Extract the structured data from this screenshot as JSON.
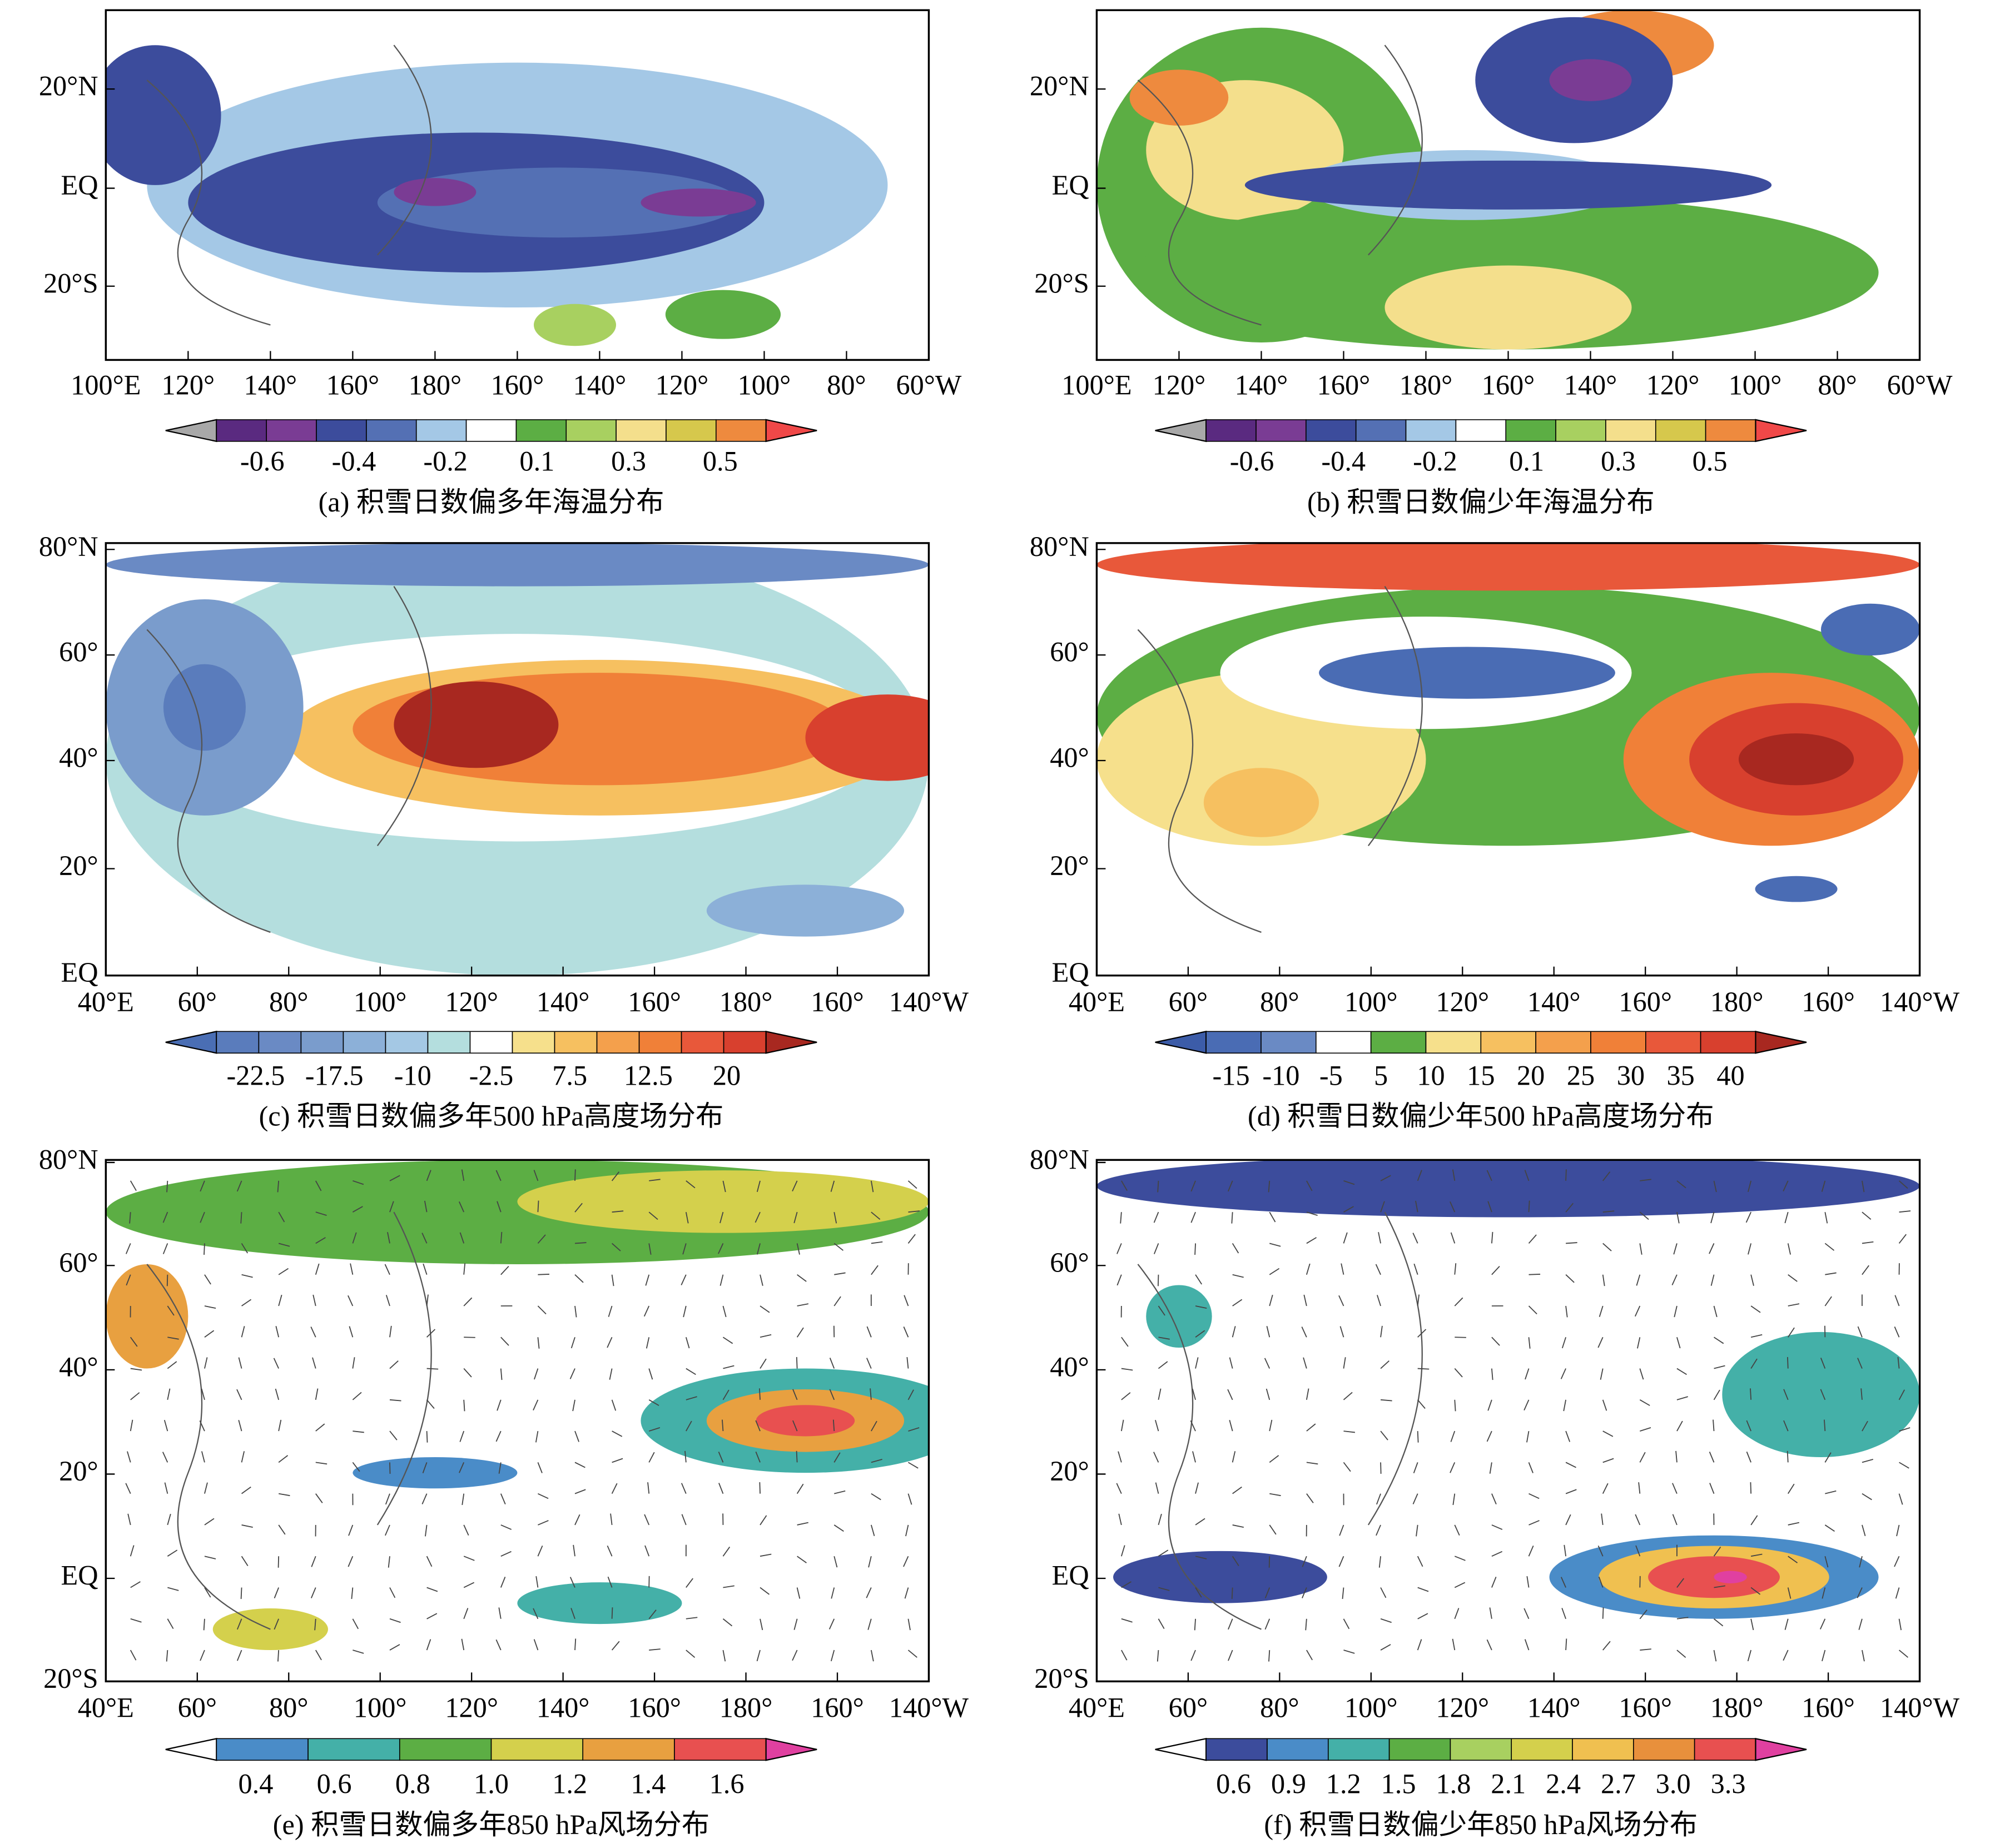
{
  "panels": [
    {
      "caption": "(a) 积雪日数偏多年海温分布",
      "x_ticks": [
        "100°E",
        "120°",
        "140°",
        "160°",
        "180°",
        "160°",
        "140°",
        "120°",
        "100°",
        "80°",
        "60°W"
      ],
      "y_ticks": [
        "20°N",
        "EQ",
        "20°S"
      ],
      "colorbar": {
        "labels": [
          "-0.6",
          "-0.4",
          "-0.2",
          "0.1",
          "0.3",
          "0.5"
        ],
        "colors": [
          "#a8a8a8",
          "#5a2a80",
          "#7a3c94",
          "#3c4c9c",
          "#5470b4",
          "#a4c8e6",
          "#ffffff",
          "#5cae44",
          "#a8d060",
          "#f4df8c",
          "#d6c84c",
          "#ee8a3e",
          "#f04848"
        ]
      }
    },
    {
      "caption": "(b) 积雪日数偏少年海温分布",
      "x_ticks": [
        "100°E",
        "120°",
        "140°",
        "160°",
        "180°",
        "160°",
        "140°",
        "120°",
        "100°",
        "80°",
        "60°W"
      ],
      "y_ticks": [
        "20°N",
        "EQ",
        "20°S"
      ],
      "colorbar": {
        "labels": [
          "-0.6",
          "-0.4",
          "-0.2",
          "0.1",
          "0.3",
          "0.5"
        ],
        "colors": [
          "#a8a8a8",
          "#5a2a80",
          "#7a3c94",
          "#3c4c9c",
          "#5470b4",
          "#a4c8e6",
          "#ffffff",
          "#5cae44",
          "#a8d060",
          "#f4df8c",
          "#d6c84c",
          "#ee8a3e",
          "#f04848"
        ]
      }
    },
    {
      "caption": "(c) 积雪日数偏多年500 hPa高度场分布",
      "x_ticks": [
        "40°E",
        "60°",
        "80°",
        "100°",
        "120°",
        "140°",
        "160°",
        "180°",
        "160°",
        "140°W"
      ],
      "y_ticks": [
        "80°N",
        "60°",
        "40°",
        "20°",
        "EQ"
      ],
      "colorbar": {
        "labels": [
          "-22.5",
          "-17.5",
          "-10",
          "-2.5",
          "7.5",
          "12.5",
          "20"
        ],
        "colors": [
          "#4a6eb4",
          "#5a7cbc",
          "#6a8ac4",
          "#7a9ccc",
          "#8cb0d8",
          "#a4c8e4",
          "#b4dede",
          "#ffffff",
          "#f6e08c",
          "#f6c060",
          "#f4a04c",
          "#f08038",
          "#e8583a",
          "#d8402e",
          "#a82820"
        ]
      }
    },
    {
      "caption": "(d) 积雪日数偏少年500 hPa高度场分布",
      "x_ticks": [
        "40°E",
        "60°",
        "80°",
        "100°",
        "120°",
        "140°",
        "160°",
        "180°",
        "160°",
        "140°W"
      ],
      "y_ticks": [
        "80°N",
        "60°",
        "40°",
        "20°",
        "EQ"
      ],
      "colorbar": {
        "labels": [
          "-15",
          "-10",
          "-5",
          "5",
          "10",
          "15",
          "20",
          "25",
          "30",
          "35",
          "40"
        ],
        "colors": [
          "#3c5ca8",
          "#4a6cb4",
          "#6a8ac4",
          "#ffffff",
          "#5cae44",
          "#f6e08c",
          "#f6c060",
          "#f4a04c",
          "#f08038",
          "#e8583a",
          "#d8402e",
          "#a82820"
        ]
      }
    },
    {
      "caption": "(e) 积雪日数偏多年850 hPa风场分布",
      "x_ticks": [
        "40°E",
        "60°",
        "80°",
        "100°",
        "120°",
        "140°",
        "160°",
        "180°",
        "160°",
        "140°W"
      ],
      "y_ticks": [
        "80°N",
        "60°",
        "40°",
        "20°",
        "EQ",
        "20°S"
      ],
      "colorbar": {
        "labels": [
          "0.4",
          "0.6",
          "0.8",
          "1.0",
          "1.2",
          "1.4",
          "1.6"
        ],
        "colors": [
          "#ffffff",
          "#4a8cc8",
          "#44b0a8",
          "#5cae44",
          "#d4d04c",
          "#e8a040",
          "#e85050",
          "#e040a0"
        ]
      }
    },
    {
      "caption": "(f) 积雪日数偏少年850 hPa风场分布",
      "x_ticks": [
        "40°E",
        "60°",
        "80°",
        "100°",
        "120°",
        "140°",
        "160°",
        "180°",
        "160°",
        "140°W"
      ],
      "y_ticks": [
        "80°N",
        "60°",
        "40°",
        "20°",
        "EQ",
        "20°S"
      ],
      "colorbar": {
        "labels": [
          "0.6",
          "0.9",
          "1.2",
          "1.5",
          "1.8",
          "2.1",
          "2.4",
          "2.7",
          "3.0",
          "3.3"
        ],
        "colors": [
          "#ffffff",
          "#3c4c9c",
          "#4a8cc8",
          "#44b0a8",
          "#5cae44",
          "#a8d060",
          "#d4d04c",
          "#f0c050",
          "#e8903c",
          "#e85050",
          "#e040a0"
        ]
      }
    }
  ]
}
